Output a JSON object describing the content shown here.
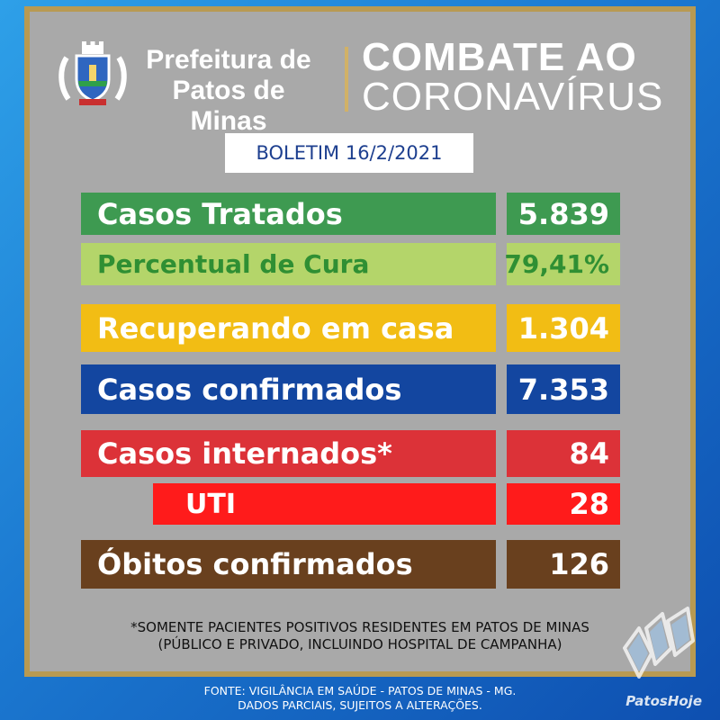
{
  "header": {
    "brand_line1": "Prefeitura de",
    "brand_line2": "Patos de Minas",
    "campaign_line1": "COMBATE AO",
    "campaign_line2": "CORONAVÍRUS"
  },
  "bulletin": "BOLETIM 16/2/2021",
  "stats": {
    "treated": {
      "label": "Casos Tratados",
      "value": "5.839"
    },
    "cure": {
      "label": "Percentual de Cura",
      "value": "79,41%"
    },
    "home": {
      "label": "Recuperando em casa",
      "value": "1.304"
    },
    "confirmed": {
      "label": "Casos confirmados",
      "value": "7.353"
    },
    "hospitalized": {
      "label": "Casos internados*",
      "value": "84"
    },
    "icu": {
      "label": "UTI",
      "value": "28"
    },
    "deaths": {
      "label": "Óbitos confirmados",
      "value": "126"
    }
  },
  "footnote": {
    "line1": "*SOMENTE PACIENTES POSITIVOS RESIDENTES EM PATOS DE MINAS",
    "line2": "(PÚBLICO E PRIVADO, INCLUINDO HOSPITAL DE CAMPANHA)"
  },
  "source": {
    "line1": "FONTE: VIGILÂNCIA EM SAÚDE - PATOS DE MINAS - MG.",
    "line2": "DADOS PARCIAIS, SUJEITOS A ALTERAÇÕES."
  },
  "watermark": "PatosHoje",
  "colors": {
    "green": "#3e9a51",
    "lime": "#b4d56a",
    "yellow": "#f2bd14",
    "blue": "#1346a0",
    "red": "#dc3238",
    "bright_red": "#ff1b1b",
    "brown": "#69401e",
    "gold": "#b89a52"
  }
}
